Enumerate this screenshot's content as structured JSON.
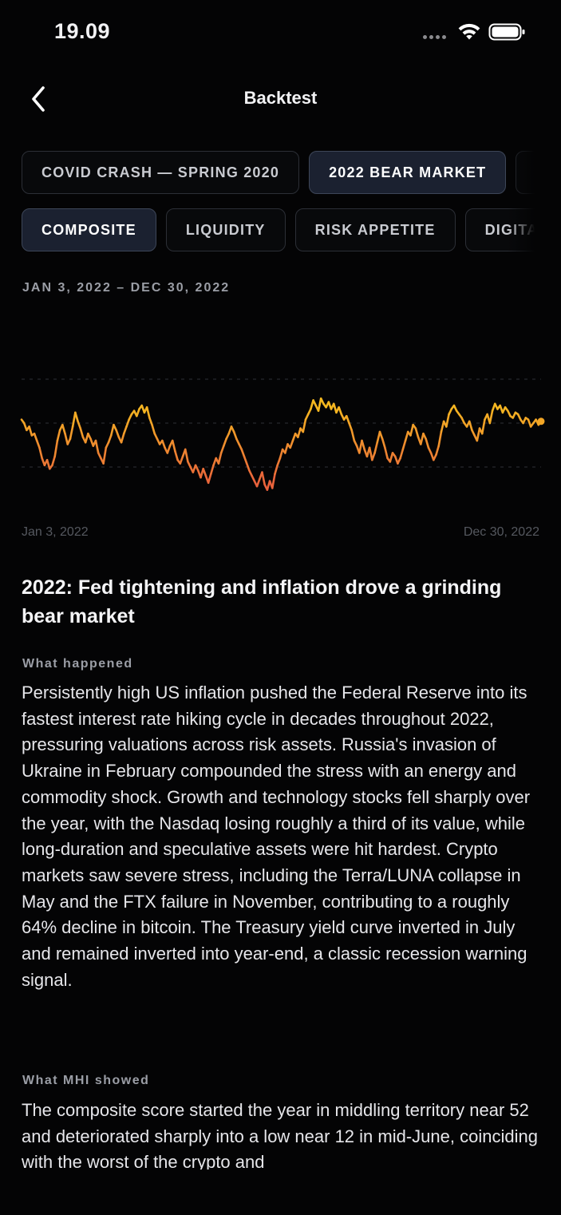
{
  "status_bar": {
    "time": "19.09"
  },
  "nav": {
    "title": "Backtest",
    "back_icon": "chevron-left-icon"
  },
  "periods": [
    {
      "label": "COVID CRASH — SPRING 2020",
      "active": false
    },
    {
      "label": "2022 BEAR MARKET",
      "active": true
    }
  ],
  "metrics": [
    {
      "label": "COMPOSITE",
      "active": true
    },
    {
      "label": "LIQUIDITY",
      "active": false
    },
    {
      "label": "RISK APPETITE",
      "active": false
    },
    {
      "label": "DIGITA",
      "active": false
    }
  ],
  "date_range": "JAN 3, 2022 – DEC 30, 2022",
  "chart_data": {
    "type": "line",
    "x_start": "Jan 3, 2022",
    "x_end": "Dec 30, 2022",
    "ylim": [
      0,
      100
    ],
    "grid": true,
    "gridlines": [
      75,
      50,
      25
    ],
    "colors": {
      "low": "#e8603c",
      "high": "#f5b820"
    },
    "values": [
      52,
      50,
      46,
      48,
      43,
      44,
      40,
      36,
      30,
      26,
      29,
      24,
      26,
      31,
      40,
      46,
      49,
      44,
      38,
      41,
      48,
      56,
      51,
      47,
      42,
      39,
      44,
      41,
      37,
      40,
      33,
      30,
      27,
      36,
      39,
      43,
      49,
      46,
      42,
      39,
      44,
      48,
      52,
      55,
      57,
      54,
      58,
      60,
      56,
      59,
      53,
      49,
      44,
      41,
      38,
      40,
      36,
      33,
      37,
      40,
      34,
      29,
      27,
      31,
      35,
      28,
      25,
      22,
      26,
      23,
      19,
      24,
      20,
      16,
      21,
      26,
      30,
      27,
      33,
      37,
      41,
      44,
      48,
      45,
      41,
      38,
      35,
      31,
      27,
      23,
      20,
      17,
      14,
      18,
      22,
      15,
      12,
      17,
      13,
      21,
      26,
      30,
      35,
      33,
      38,
      36,
      40,
      44,
      42,
      47,
      45,
      52,
      55,
      58,
      63,
      60,
      57,
      64,
      61,
      59,
      62,
      58,
      61,
      56,
      59,
      55,
      52,
      54,
      50,
      46,
      40,
      37,
      33,
      40,
      35,
      31,
      36,
      29,
      33,
      39,
      45,
      41,
      36,
      30,
      28,
      33,
      31,
      27,
      30,
      35,
      40,
      45,
      43,
      49,
      47,
      42,
      38,
      44,
      41,
      36,
      33,
      29,
      32,
      37,
      45,
      51,
      48,
      55,
      58,
      60,
      57,
      55,
      53,
      50,
      48,
      51,
      46,
      43,
      40,
      47,
      44,
      52,
      55,
      50,
      57,
      61,
      58,
      60,
      56,
      59,
      57,
      54,
      53,
      56,
      55,
      52,
      50,
      53,
      52,
      48,
      50,
      52,
      49,
      51
    ]
  },
  "headline": "2022: Fed tightening and inflation drove a grinding bear market",
  "sections": [
    {
      "label": "What happened",
      "text": "Persistently high US inflation pushed the Federal Reserve into its fastest interest rate hiking cycle in decades throughout 2022, pressuring valuations across risk assets. Russia's invasion of Ukraine in February compounded the stress with an energy and commodity shock. Growth and technology stocks fell sharply over the year, with the Nasdaq losing roughly a third of its value, while long-duration and speculative assets were hit hardest. Crypto markets saw severe stress, including the Terra/LUNA collapse in May and the FTX failure in November, contributing to a roughly 64% decline in bitcoin. The Treasury yield curve inverted in July and remained inverted into year-end, a classic recession warning signal."
    },
    {
      "label": "What MHI showed",
      "text": "The composite score started the year in middling territory near 52 and deteriorated sharply into a low near 12 in mid-June, coinciding with the worst of the crypto and"
    }
  ]
}
